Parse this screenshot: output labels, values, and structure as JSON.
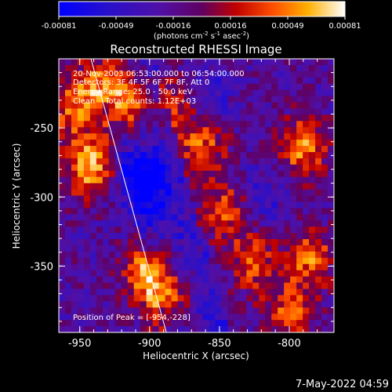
{
  "chart_data": {
    "type": "heatmap",
    "title": "Reconstructed RHESSI Image",
    "xlabel": "Heliocentric X (arcsec)",
    "ylabel": "Heliocentric Y (arcsec)",
    "xlim": [
      -965,
      -768
    ],
    "ylim": [
      -398,
      -200
    ],
    "x_ticks": [
      -950,
      -900,
      -850,
      -800
    ],
    "y_ticks": [
      -250,
      -300,
      -350
    ],
    "colorbar": {
      "range": [
        -0.00081,
        0.00081
      ],
      "ticks": [
        "-0.00081",
        "-0.00049",
        "-0.00016",
        "0.00016",
        "0.00049",
        "0.00081"
      ],
      "unit_label": "(photons cm",
      "unit_sup1": "-2",
      "unit_mid": " s",
      "unit_sup2": "-1",
      "unit_mid2": " asec",
      "unit_sup3": "-2",
      "unit_end": ")"
    },
    "info_lines": [
      "20-Nov-2003 06:53:00.000 to 06:54:00.000",
      "Detectors: 3F 4F 5F 6F 7F 8F, Att 0",
      "Energy Range: 25.0 - 50.0 keV",
      "Clean    Total counts: 1.12E+03"
    ],
    "peak_label": "Position of Peak = [-954,-228]",
    "peak": [
      -954,
      -228
    ],
    "limb_line": {
      "from": [
        -942,
        -200
      ],
      "to": [
        -888,
        -398
      ]
    },
    "hotspots": [
      {
        "x": -943,
        "y": -278,
        "v": 0.00081
      },
      {
        "x": -930,
        "y": -215,
        "v": 0.00075
      },
      {
        "x": -915,
        "y": -235,
        "v": 0.0007
      },
      {
        "x": -900,
        "y": -355,
        "v": 0.0008
      },
      {
        "x": -885,
        "y": -375,
        "v": 0.0006
      },
      {
        "x": -880,
        "y": -232,
        "v": 0.0005
      },
      {
        "x": -862,
        "y": -262,
        "v": 0.0006
      },
      {
        "x": -845,
        "y": -310,
        "v": 0.00055
      },
      {
        "x": -825,
        "y": -348,
        "v": 0.0005
      },
      {
        "x": -790,
        "y": -265,
        "v": 0.0007
      },
      {
        "x": -785,
        "y": -345,
        "v": 0.0006
      },
      {
        "x": -800,
        "y": -385,
        "v": 0.00055
      },
      {
        "x": -955,
        "y": -235,
        "v": 0.0006
      },
      {
        "x": -905,
        "y": -290,
        "v": -0.0006
      },
      {
        "x": -860,
        "y": -230,
        "v": -0.0004
      },
      {
        "x": -820,
        "y": -300,
        "v": -0.0003
      }
    ]
  },
  "footer": {
    "timestamp": "7-May-2022 04:59"
  }
}
